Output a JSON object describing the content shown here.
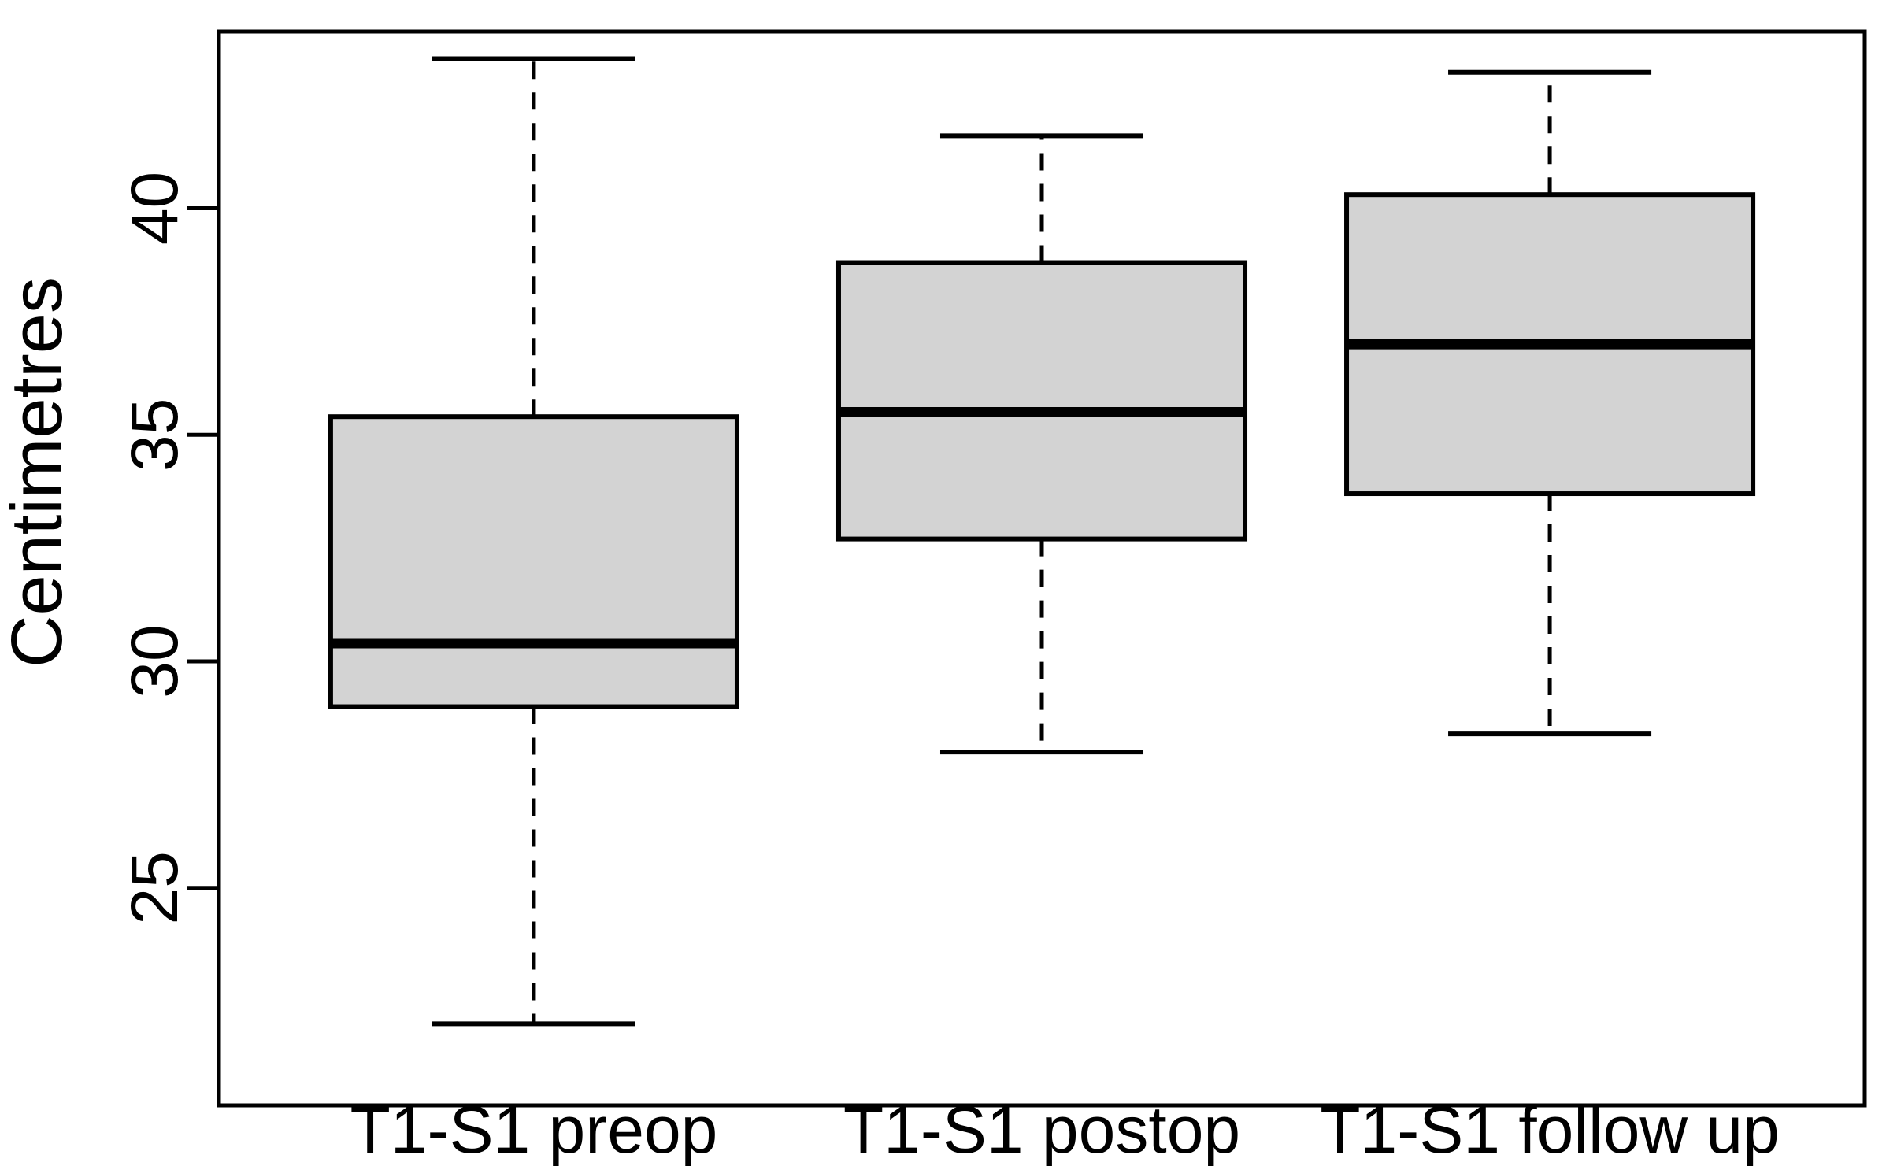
{
  "chart_data": {
    "type": "boxplot",
    "title": "",
    "xlabel": "",
    "ylabel": "Centimetres",
    "categories": [
      "T1-S1 preop",
      "T1-S1 postop",
      "T1-S1 follow up"
    ],
    "yticks": [
      25,
      30,
      35,
      40
    ],
    "ylim": [
      20.2,
      43.9
    ],
    "grid": false,
    "legend": "none",
    "series": [
      {
        "name": "T1-S1 preop",
        "whisker_low": 22.0,
        "q1": 29.0,
        "median": 30.4,
        "q3": 35.4,
        "whisker_high": 43.3
      },
      {
        "name": "T1-S1 postop",
        "whisker_low": 28.0,
        "q1": 32.7,
        "median": 35.5,
        "q3": 38.8,
        "whisker_high": 41.6
      },
      {
        "name": "T1-S1 follow up",
        "whisker_low": 28.4,
        "q1": 33.7,
        "median": 37.0,
        "q3": 40.3,
        "whisker_high": 43.0
      }
    ],
    "box_fill_color": "#d3d3d3",
    "line_color": "#000000",
    "background_color": "#ffffff"
  }
}
